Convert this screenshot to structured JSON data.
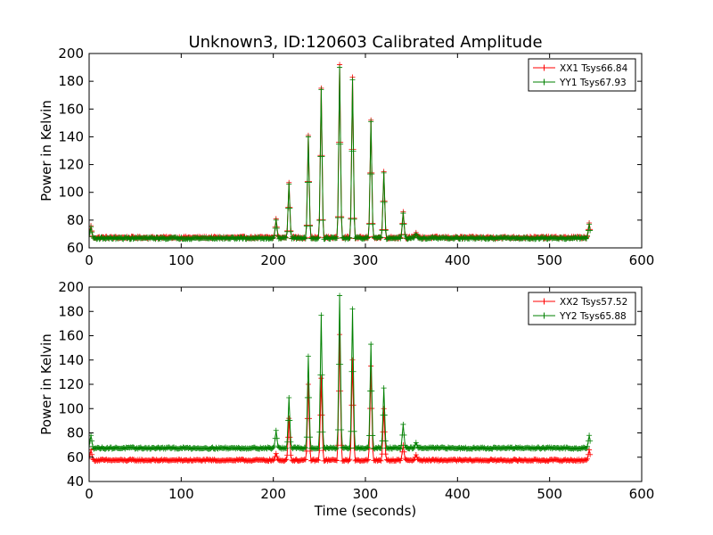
{
  "figure": {
    "title": "Unknown3, ID:120603 Calibrated Amplitude"
  },
  "chart_data": [
    {
      "type": "line",
      "title": "Unknown3, ID:120603 Calibrated Amplitude",
      "xlabel": "",
      "ylabel": "Power in Kelvin",
      "xlim": [
        0,
        600
      ],
      "ylim": [
        60,
        200
      ],
      "xticks": [
        "0",
        "100",
        "200",
        "300",
        "400",
        "500",
        "600"
      ],
      "yticks": [
        "60",
        "80",
        "100",
        "120",
        "140",
        "160",
        "180",
        "200"
      ],
      "grid": false,
      "legend_position": "top-right",
      "marker": "plus",
      "series": [
        {
          "name": "XX1 Tsys66.84",
          "color": "#ff0000",
          "baseline": 67.5,
          "x_start": 0,
          "x_end": 544,
          "peaks": [
            {
              "x": 2,
              "y": 76
            },
            {
              "x": 203,
              "y": 81
            },
            {
              "x": 217,
              "y": 107
            },
            {
              "x": 238,
              "y": 141
            },
            {
              "x": 252,
              "y": 175
            },
            {
              "x": 272,
              "y": 192
            },
            {
              "x": 286,
              "y": 183
            },
            {
              "x": 306,
              "y": 152
            },
            {
              "x": 320,
              "y": 115
            },
            {
              "x": 341,
              "y": 86
            },
            {
              "x": 355,
              "y": 71
            },
            {
              "x": 543,
              "y": 78
            }
          ]
        },
        {
          "name": "YY1 Tsys67.93",
          "color": "#008000",
          "baseline": 67.0,
          "x_start": 0,
          "x_end": 544,
          "peaks": [
            {
              "x": 2,
              "y": 75
            },
            {
              "x": 203,
              "y": 80
            },
            {
              "x": 217,
              "y": 106
            },
            {
              "x": 238,
              "y": 140
            },
            {
              "x": 252,
              "y": 174
            },
            {
              "x": 272,
              "y": 190
            },
            {
              "x": 286,
              "y": 181
            },
            {
              "x": 306,
              "y": 151
            },
            {
              "x": 320,
              "y": 114
            },
            {
              "x": 341,
              "y": 85
            },
            {
              "x": 355,
              "y": 70
            },
            {
              "x": 543,
              "y": 77
            }
          ]
        }
      ]
    },
    {
      "type": "line",
      "title": "",
      "xlabel": "Time (seconds)",
      "ylabel": "Power in Kelvin",
      "xlim": [
        0,
        600
      ],
      "ylim": [
        40,
        200
      ],
      "xticks": [
        "0",
        "100",
        "200",
        "300",
        "400",
        "500",
        "600"
      ],
      "yticks": [
        "40",
        "60",
        "80",
        "100",
        "120",
        "140",
        "160",
        "180",
        "200"
      ],
      "grid": false,
      "legend_position": "top-right",
      "marker": "plus",
      "series": [
        {
          "name": "XX2 Tsys57.52",
          "color": "#ff0000",
          "baseline": 57.5,
          "x_start": 0,
          "x_end": 544,
          "peaks": [
            {
              "x": 2,
              "y": 66
            },
            {
              "x": 203,
              "y": 63
            },
            {
              "x": 217,
              "y": 92
            },
            {
              "x": 238,
              "y": 120
            },
            {
              "x": 252,
              "y": 125
            },
            {
              "x": 272,
              "y": 161
            },
            {
              "x": 286,
              "y": 140
            },
            {
              "x": 306,
              "y": 135
            },
            {
              "x": 320,
              "y": 100
            },
            {
              "x": 341,
              "y": 70
            },
            {
              "x": 355,
              "y": 62
            },
            {
              "x": 543,
              "y": 66
            }
          ]
        },
        {
          "name": "YY2 Tsys65.88",
          "color": "#008000",
          "baseline": 67.5,
          "x_start": 0,
          "x_end": 544,
          "peaks": [
            {
              "x": 2,
              "y": 78
            },
            {
              "x": 203,
              "y": 82
            },
            {
              "x": 217,
              "y": 109
            },
            {
              "x": 238,
              "y": 143
            },
            {
              "x": 252,
              "y": 177
            },
            {
              "x": 272,
              "y": 193
            },
            {
              "x": 286,
              "y": 182
            },
            {
              "x": 306,
              "y": 153
            },
            {
              "x": 320,
              "y": 117
            },
            {
              "x": 341,
              "y": 87
            },
            {
              "x": 355,
              "y": 72
            },
            {
              "x": 543,
              "y": 78
            }
          ]
        }
      ]
    }
  ]
}
